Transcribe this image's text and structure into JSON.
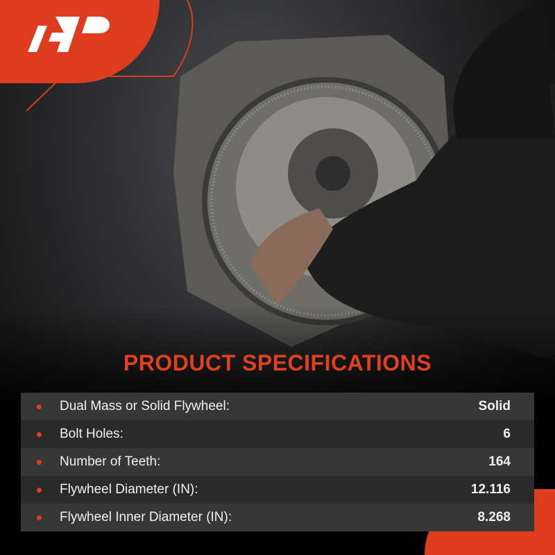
{
  "brand": {
    "logo_text": "AP",
    "accent_color": "#de3c1f"
  },
  "title": "PRODUCT SPECIFICATIONS",
  "specs": [
    {
      "label": "Dual Mass or Solid Flywheel:",
      "value": "Solid"
    },
    {
      "label": "Bolt Holes:",
      "value": "6"
    },
    {
      "label": "Number of Teeth:",
      "value": "164"
    },
    {
      "label": "Flywheel Diameter (IN):",
      "value": "12.116"
    },
    {
      "label": "Flywheel Inner Diameter (IN):",
      "value": "8.268"
    }
  ]
}
